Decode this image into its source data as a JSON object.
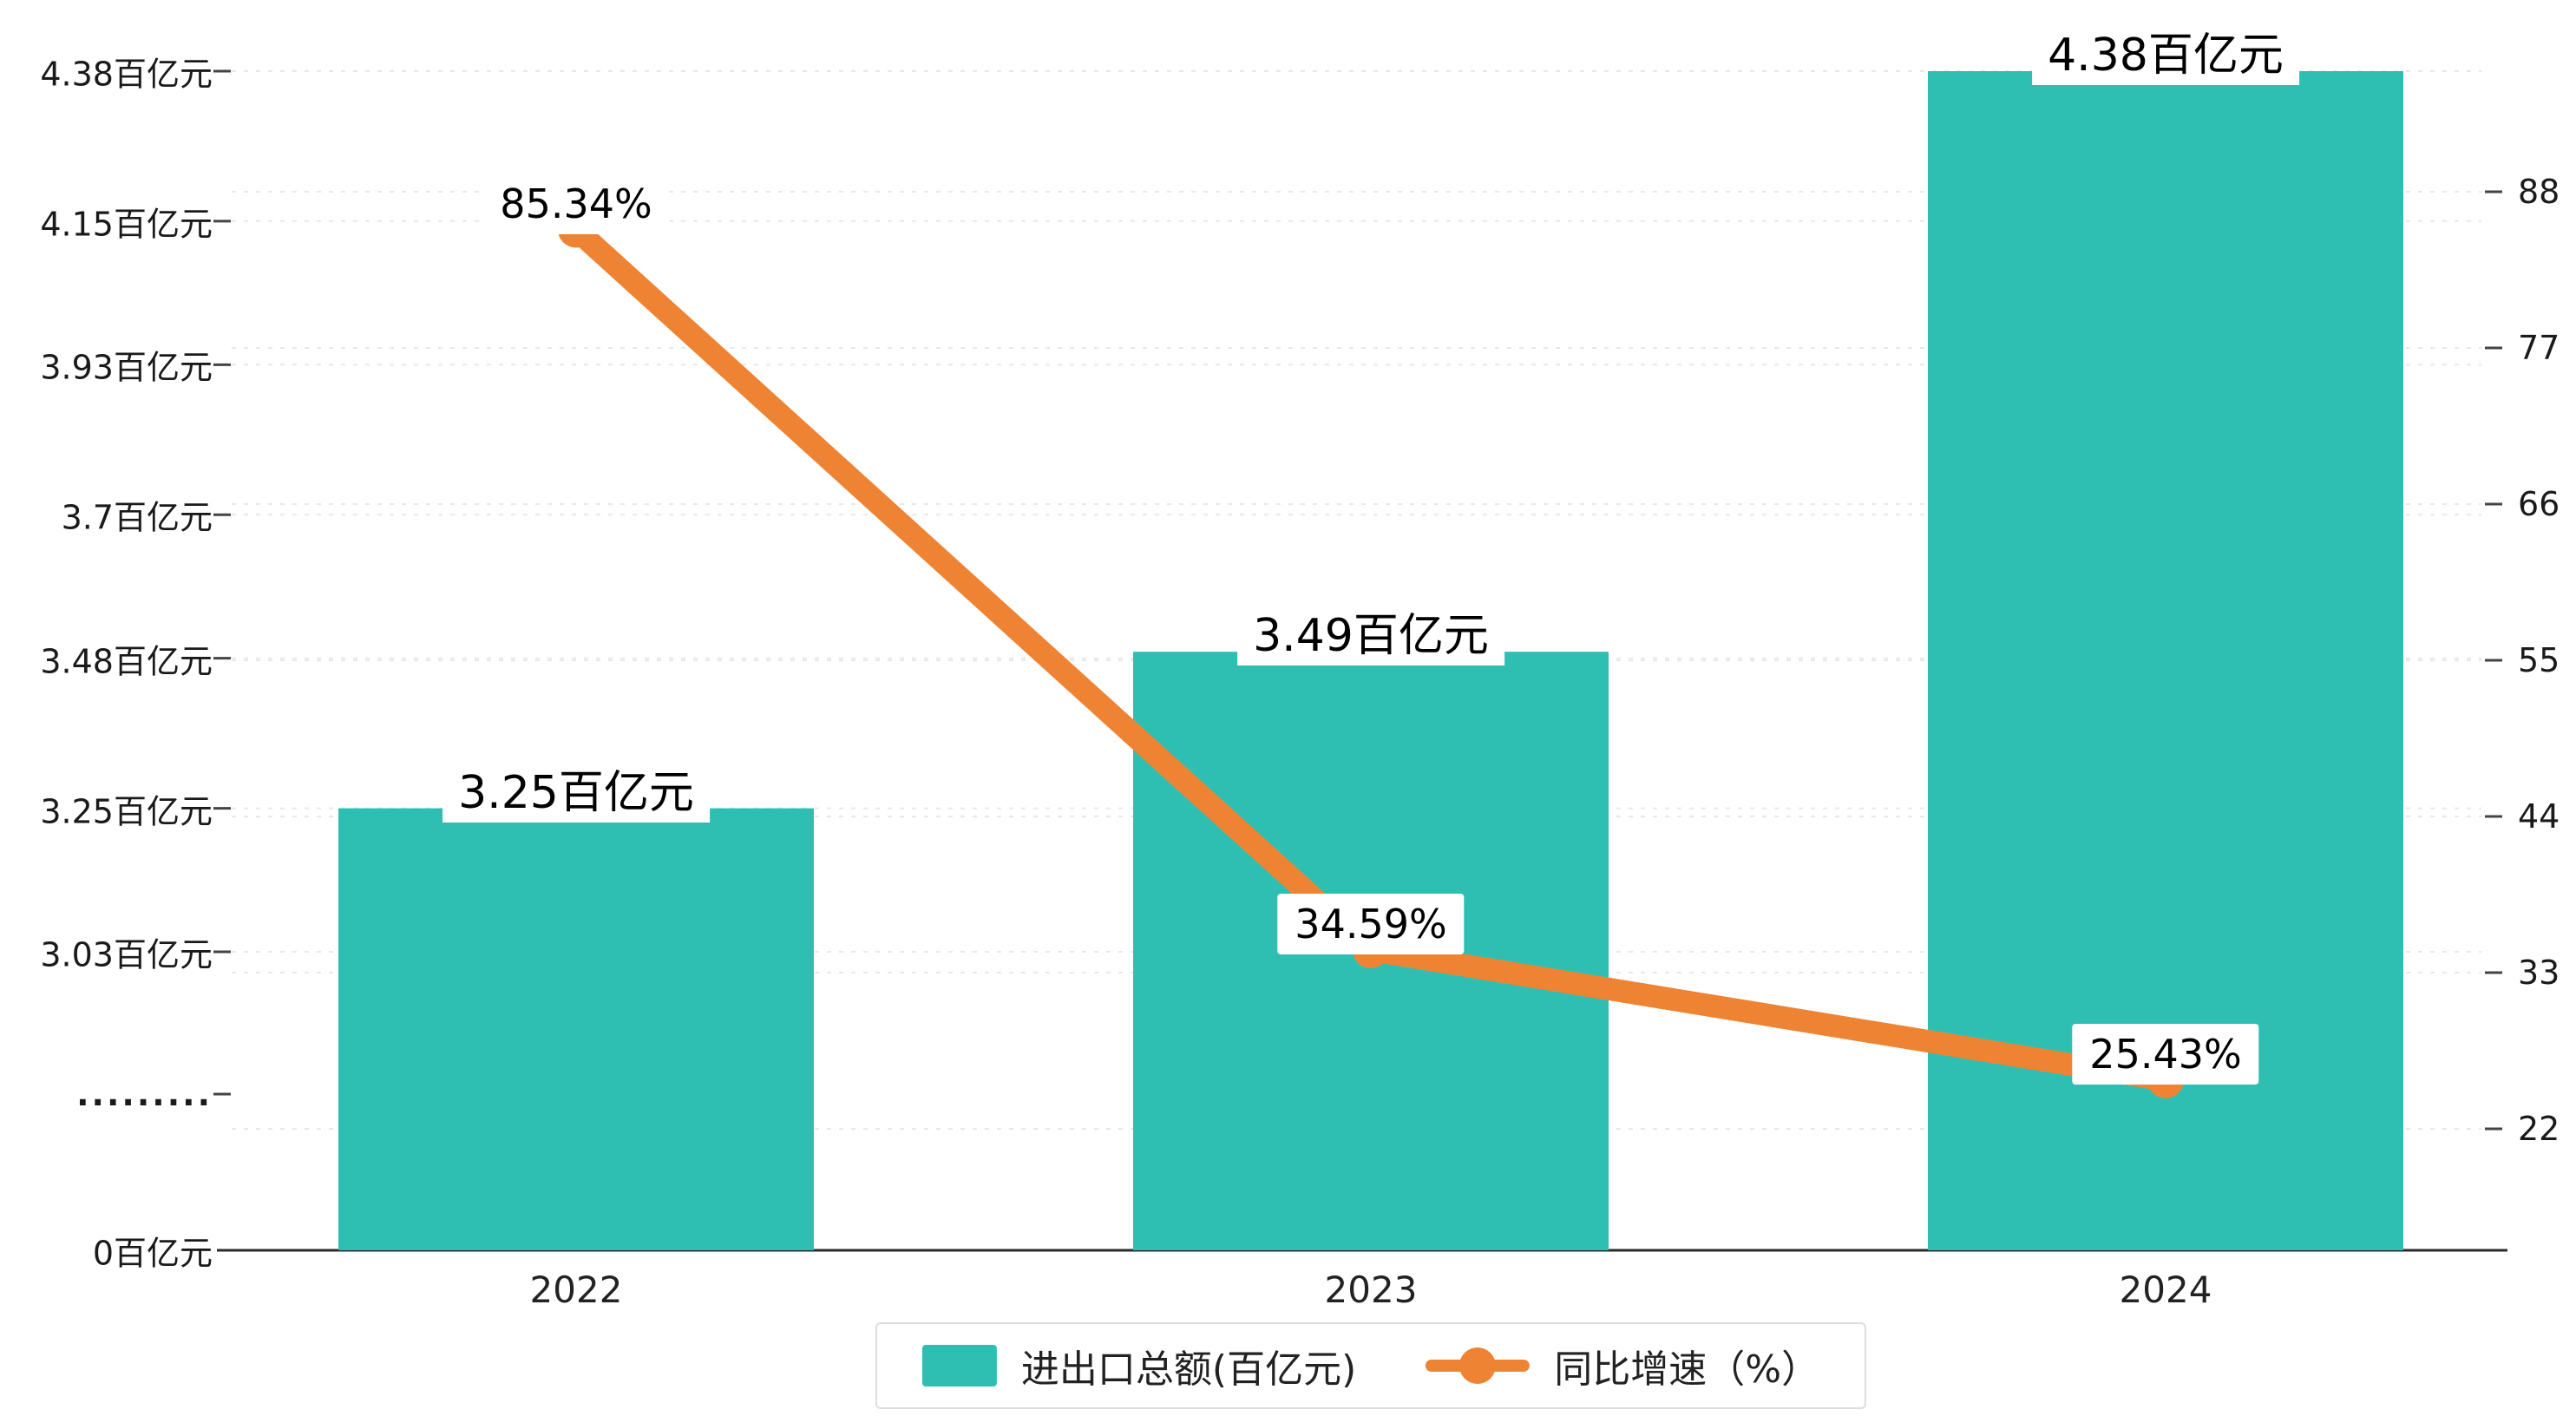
{
  "chart_data": {
    "type": "bar",
    "title": "",
    "categories": [
      "2022",
      "2023",
      "2024"
    ],
    "series": [
      {
        "name": "进出口总额(百亿元)",
        "type": "bar",
        "axis": "left",
        "color": "#2fbfb2",
        "values": [
          3.25,
          3.49,
          4.38
        ],
        "labels": [
          "3.25百亿元",
          "3.49百亿元",
          "4.38百亿元"
        ]
      },
      {
        "name": "同比增速（%）",
        "type": "line",
        "axis": "right",
        "color": "#ee8433",
        "values": [
          85.34,
          34.59,
          25.43
        ],
        "labels": [
          "85.34%",
          "34.59%",
          "25.43%"
        ]
      }
    ],
    "left_axis": {
      "unit": "百亿元",
      "ticks": [
        {
          "value": 4.38,
          "label": "4.38百亿元"
        },
        {
          "value": 4.15,
          "label": "4.15百亿元"
        },
        {
          "value": 3.93,
          "label": "3.93百亿元"
        },
        {
          "value": 3.7,
          "label": "3.7百亿元"
        },
        {
          "value": 3.48,
          "label": "3.48百亿元"
        },
        {
          "value": 3.25,
          "label": "3.25百亿元"
        },
        {
          "value": 3.03,
          "label": "3.03百亿元"
        }
      ],
      "break_label": ".........",
      "zero_label": "0百亿元",
      "axis_break": true
    },
    "right_axis": {
      "ticks": [
        88,
        77,
        66,
        55,
        44,
        33,
        22
      ]
    },
    "legend_position": "bottom",
    "grid": true,
    "background": "#ffffff"
  }
}
